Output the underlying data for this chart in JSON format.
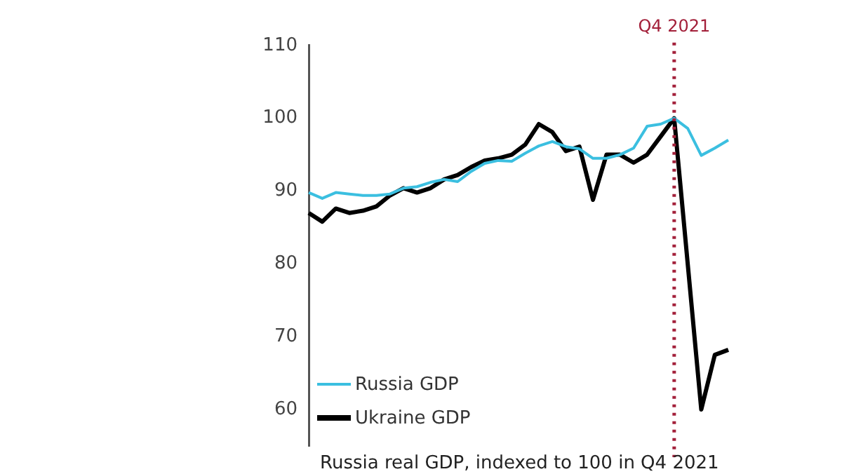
{
  "chart_data": {
    "type": "line",
    "categories": [
      null,
      null,
      null,
      null,
      null,
      null,
      null,
      null,
      null,
      null,
      null,
      null,
      null,
      null,
      null,
      null,
      null,
      null,
      null,
      null,
      null,
      null,
      null,
      null,
      null,
      null,
      null,
      "Q4 2021",
      null,
      null,
      null,
      null
    ],
    "series": [
      {
        "name": "Russia GDP",
        "color": "#3bbfe0",
        "values": [
          89.8,
          89.0,
          89.8,
          89.6,
          89.4,
          89.4,
          89.6,
          90.4,
          90.6,
          91.2,
          91.6,
          91.3,
          92.7,
          93.8,
          94.2,
          94.1,
          95.2,
          96.2,
          96.8,
          96.1,
          95.8,
          94.5,
          94.5,
          95.0,
          95.9,
          98.9,
          99.2,
          100,
          98.6,
          94.9,
          95.9,
          97.0
        ]
      },
      {
        "name": "Ukraine GDP",
        "color": "#000000",
        "values": [
          87.0,
          85.8,
          87.6,
          87.0,
          87.3,
          87.9,
          89.4,
          90.4,
          89.8,
          90.4,
          91.6,
          92.2,
          93.3,
          94.2,
          94.5,
          95.0,
          96.4,
          99.2,
          98.1,
          95.5,
          96.1,
          88.8,
          95.0,
          95.0,
          93.9,
          95.0,
          97.5,
          100,
          80,
          60,
          67.5,
          68.2
        ]
      }
    ],
    "ylim": [
      55,
      110
    ],
    "yticks": [
      60,
      70,
      80,
      90,
      100,
      110
    ],
    "grid": false,
    "legend": "bottom left",
    "marker": "none",
    "line_style": "solid",
    "ref_lines": [
      {
        "axis": "x",
        "value": "Q4 2021",
        "color": "#a3203a",
        "line_style": "dotted"
      }
    ],
    "annotations": [
      "Russia real GDP, indexed to 100 in Q4 2021"
    ]
  }
}
